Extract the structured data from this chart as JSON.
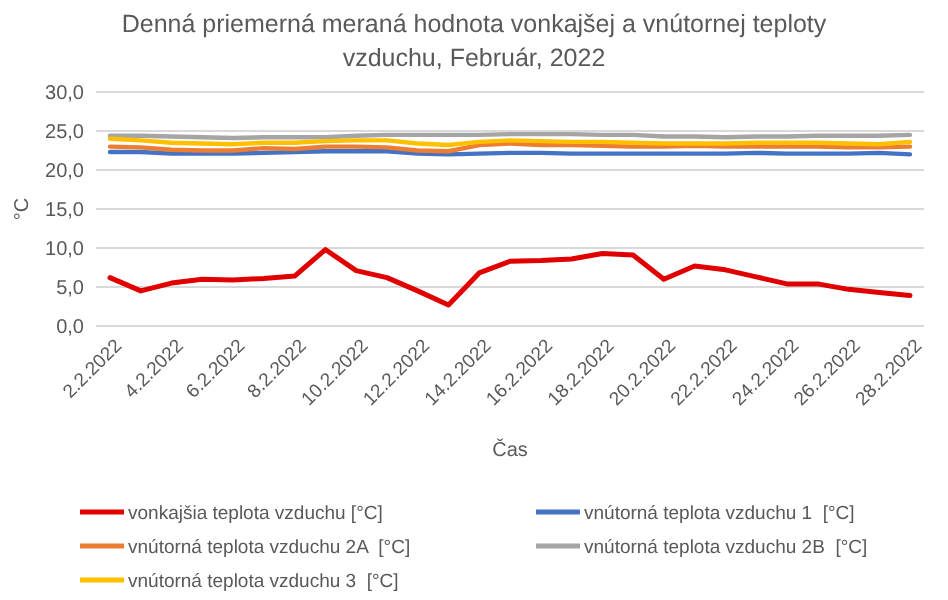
{
  "chart_data": {
    "type": "line",
    "title": "Denná priemerná meraná hodnota vonkajšej a vnútornej teploty vzduchu, Február, 2022",
    "xlabel": "Čas",
    "ylabel": "°C",
    "categories": [
      "2.2.2022",
      null,
      "4.2.2022",
      null,
      "6.2.2022",
      null,
      "8.2.2022",
      null,
      "10.2.2022",
      null,
      "12.2.2022",
      null,
      "14.2.2022",
      null,
      "16.2.2022",
      null,
      "18.2.2022",
      null,
      "20.2.2022",
      null,
      "22.2.2022",
      null,
      "24.2.2022",
      null,
      "26.2.2022",
      null,
      "28.2.2022"
    ],
    "series": [
      {
        "name": "vonkajšia teplota vzduchu [°C]",
        "color": "#e00000",
        "values": [
          6.2,
          4.5,
          5.5,
          6.0,
          5.9,
          6.1,
          6.4,
          9.8,
          7.1,
          6.2,
          4.5,
          2.7,
          6.8,
          8.3,
          8.4,
          8.6,
          9.3,
          9.1,
          6.0,
          7.7,
          7.2,
          6.3,
          5.4,
          5.4,
          4.7,
          4.3,
          3.9
        ]
      },
      {
        "name": "vnútorná teplota vzduchu 1  [°C]",
        "color": "#4472c4",
        "values": [
          22.3,
          22.3,
          22.1,
          22.1,
          22.1,
          22.2,
          22.3,
          22.4,
          22.4,
          22.4,
          22.1,
          22.0,
          22.1,
          22.2,
          22.2,
          22.1,
          22.1,
          22.1,
          22.1,
          22.1,
          22.1,
          22.2,
          22.1,
          22.1,
          22.1,
          22.2,
          22.0
        ]
      },
      {
        "name": "vnútorná teplota vzduchu 2A  [°C]",
        "color": "#ed7d31",
        "values": [
          23.0,
          22.9,
          22.6,
          22.5,
          22.5,
          22.8,
          22.7,
          23.0,
          23.0,
          22.9,
          22.5,
          22.4,
          23.2,
          23.4,
          23.2,
          23.2,
          23.1,
          23.0,
          23.0,
          23.1,
          23.0,
          23.0,
          23.0,
          23.0,
          22.9,
          22.9,
          23.0
        ]
      },
      {
        "name": "vnútorná teplota vzduchu 2B  [°C]",
        "color": "#a5a5a5",
        "values": [
          24.4,
          24.4,
          24.3,
          24.2,
          24.1,
          24.2,
          24.2,
          24.2,
          24.4,
          24.5,
          24.5,
          24.5,
          24.5,
          24.6,
          24.6,
          24.6,
          24.5,
          24.5,
          24.3,
          24.3,
          24.2,
          24.3,
          24.3,
          24.4,
          24.4,
          24.4,
          24.5
        ]
      },
      {
        "name": "vnútorná teplota vzduchu 3  [°C]",
        "color": "#ffc000",
        "values": [
          24.0,
          23.8,
          23.5,
          23.4,
          23.3,
          23.5,
          23.5,
          23.7,
          23.8,
          23.8,
          23.4,
          23.2,
          23.6,
          23.8,
          23.7,
          23.6,
          23.6,
          23.5,
          23.4,
          23.4,
          23.4,
          23.5,
          23.5,
          23.5,
          23.4,
          23.3,
          23.6
        ]
      }
    ],
    "ylim": [
      0,
      30
    ],
    "yticks": [
      {
        "value": 0,
        "label": "0,0"
      },
      {
        "value": 5,
        "label": "5,0"
      },
      {
        "value": 10,
        "label": "10,0"
      },
      {
        "value": 15,
        "label": "15,0"
      },
      {
        "value": 20,
        "label": "20,0"
      },
      {
        "value": 25,
        "label": "25,0"
      },
      {
        "value": 30,
        "label": "30,0"
      }
    ],
    "grid": "y",
    "legend": "bottom",
    "line_style": "solid",
    "marker": "none"
  }
}
